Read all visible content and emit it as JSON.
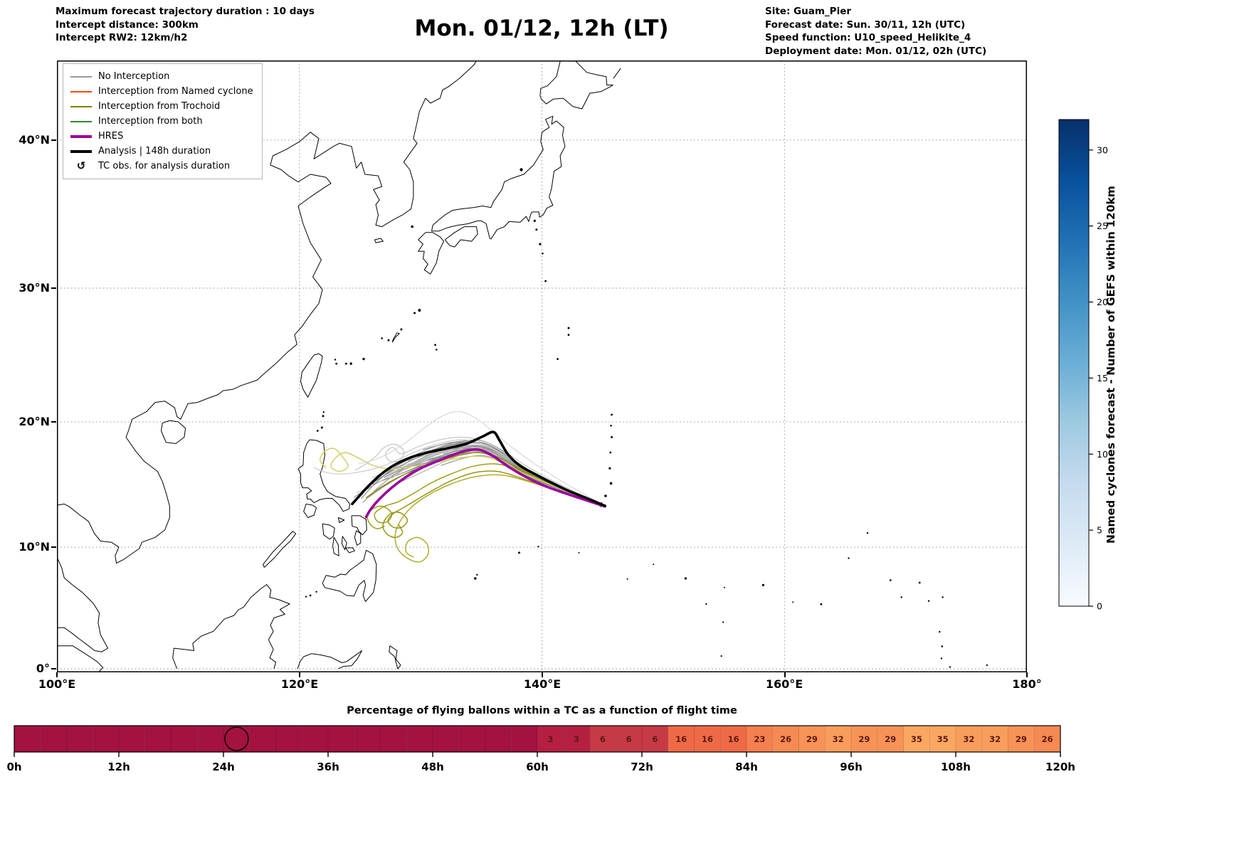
{
  "header": {
    "info_left": {
      "line1": "Maximum forecast trajectory duration : 10 days",
      "line2": "Intercept distance: 300km",
      "line3": "Intercept RW2: 12km/h2"
    },
    "title": "Mon. 01/12, 12h (LT)",
    "info_right": {
      "line1": "Site: Guam_Pier",
      "line2": "Forecast date: Sun. 30/11, 12h (UTC)",
      "line3": "Speed function: U10_speed_Helikite_4",
      "line4": "Deployment date: Mon. 01/12, 02h (UTC)"
    }
  },
  "map": {
    "x_tick_labels": [
      "100°E",
      "120°E",
      "140°E",
      "160°E",
      "180°"
    ],
    "x_tick_lons": [
      100,
      120,
      140,
      160,
      180
    ],
    "y_tick_labels": [
      "0°",
      "10°N",
      "20°N",
      "30°N",
      "40°N"
    ],
    "y_tick_lats": [
      0,
      10,
      20,
      30,
      40
    ],
    "legend": {
      "items": [
        {
          "label": "No Interception",
          "color": "#999999",
          "lw": 2,
          "type": "line"
        },
        {
          "label": "Interception from Named cyclone",
          "color": "#ff4500",
          "lw": 2,
          "type": "line"
        },
        {
          "label": "Interception from Trochoid",
          "color": "#808000",
          "lw": 2,
          "type": "line"
        },
        {
          "label": "Interception from both",
          "color": "#2e8b2e",
          "lw": 2,
          "type": "line"
        },
        {
          "label": "HRES",
          "color": "#9b009b",
          "lw": 4,
          "type": "line"
        },
        {
          "label": "Analysis | 148h duration",
          "color": "#000000",
          "lw": 4,
          "type": "line"
        },
        {
          "label": "TC obs. for analysis duration",
          "symbol": "↺",
          "type": "symbol"
        }
      ]
    }
  },
  "chart_data": {
    "type": "map-trajectories",
    "lon_range": [
      100,
      180
    ],
    "lat_range": [
      -0.3,
      44.9
    ],
    "grid": "dashed",
    "trajectories": {
      "analysis": {
        "name": "Analysis | 148h duration",
        "color": "#000000",
        "width": 3.6,
        "points": [
          [
            145.2,
            13.35
          ],
          [
            143.6,
            14.0
          ],
          [
            142.2,
            14.55
          ],
          [
            140.9,
            15.15
          ],
          [
            139.5,
            15.85
          ],
          [
            138.2,
            16.55
          ],
          [
            137.2,
            17.45
          ],
          [
            136.5,
            18.55
          ],
          [
            136.0,
            19.2
          ],
          [
            135.1,
            18.85
          ],
          [
            133.8,
            18.3
          ],
          [
            132.3,
            17.95
          ],
          [
            130.8,
            17.65
          ],
          [
            129.3,
            17.25
          ],
          [
            127.9,
            16.65
          ],
          [
            126.7,
            15.85
          ],
          [
            125.7,
            14.95
          ],
          [
            124.9,
            14.1
          ],
          [
            124.35,
            13.5
          ]
        ]
      },
      "hres": {
        "name": "HRES",
        "color": "#9b009b",
        "width": 3.6,
        "points": [
          [
            145.2,
            13.3
          ],
          [
            143.5,
            13.85
          ],
          [
            141.8,
            14.4
          ],
          [
            140.1,
            15.0
          ],
          [
            138.6,
            15.7
          ],
          [
            137.2,
            16.5
          ],
          [
            136.0,
            17.3
          ],
          [
            134.9,
            17.8
          ],
          [
            133.8,
            17.75
          ],
          [
            132.5,
            17.35
          ],
          [
            131.2,
            16.85
          ],
          [
            129.9,
            16.3
          ],
          [
            128.7,
            15.6
          ],
          [
            127.6,
            14.8
          ],
          [
            126.6,
            13.9
          ],
          [
            125.9,
            13.1
          ],
          [
            125.5,
            12.45
          ]
        ]
      },
      "ensemble_base": [
        [
          145.2,
          13.35
        ],
        [
          143.3,
          14.1
        ],
        [
          141.4,
          14.85
        ],
        [
          139.6,
          15.6
        ],
        [
          137.9,
          16.5
        ],
        [
          136.4,
          17.45
        ],
        [
          135.0,
          17.95
        ],
        [
          133.5,
          17.9
        ],
        [
          131.9,
          17.55
        ],
        [
          130.3,
          17.05
        ],
        [
          128.7,
          16.45
        ],
        [
          127.1,
          15.75
        ],
        [
          125.7,
          15.0
        ],
        [
          124.5,
          14.3
        ]
      ],
      "ensemble": {
        "count": 24,
        "seed": 97,
        "spread_deg": 1.9,
        "colors": [
          "#7d7d7d",
          "#8a8a8a",
          "#979797",
          "#a5a5a5",
          "#b3b3b3",
          "#c1c1c1",
          "#8f8f8f",
          "#9b9b9b"
        ]
      },
      "members": [
        {
          "name": "trochoid-1",
          "color": "#8f8f00",
          "width": 1.4,
          "points": [
            [
              145.2,
              13.3
            ],
            [
              142.6,
              14.1
            ],
            [
              140.2,
              14.9
            ],
            [
              138.2,
              15.6
            ],
            [
              136.3,
              16.1
            ],
            [
              134.4,
              16.0
            ],
            [
              132.6,
              15.4
            ],
            [
              131.0,
              14.6
            ],
            [
              129.6,
              13.8
            ],
            [
              128.4,
              13.1
            ],
            [
              127.7,
              12.7
            ],
            [
              127.3,
              12.1
            ],
            [
              127.8,
              11.6
            ],
            [
              128.5,
              11.65
            ],
            [
              128.9,
              12.2
            ],
            [
              128.4,
              12.75
            ],
            [
              127.7,
              12.8
            ],
            [
              127.1,
              12.3
            ],
            [
              126.9,
              11.6
            ],
            [
              127.3,
              11.0
            ],
            [
              128.0,
              10.8
            ],
            [
              128.5,
              11.2
            ],
            [
              128.2,
              11.8
            ]
          ]
        },
        {
          "name": "trochoid-2",
          "color": "#a8a820",
          "width": 1.4,
          "points": [
            [
              145.2,
              13.3
            ],
            [
              142.0,
              14.3
            ],
            [
              139.2,
              15.2
            ],
            [
              136.8,
              15.8
            ],
            [
              134.6,
              15.7
            ],
            [
              132.5,
              15.1
            ],
            [
              130.6,
              14.2
            ],
            [
              129.2,
              13.2
            ],
            [
              128.3,
              12.1
            ],
            [
              127.9,
              11.0
            ],
            [
              128.1,
              9.9
            ],
            [
              128.9,
              9.1
            ],
            [
              129.9,
              8.8
            ],
            [
              130.6,
              9.4
            ],
            [
              130.5,
              10.3
            ],
            [
              129.7,
              10.8
            ],
            [
              128.9,
              10.4
            ],
            [
              128.8,
              9.6
            ],
            [
              129.4,
              9.2
            ]
          ]
        },
        {
          "name": "trochoid-3",
          "color": "#9a9a10",
          "width": 1.4,
          "points": [
            [
              145.2,
              13.3
            ],
            [
              142.4,
              14.5
            ],
            [
              139.9,
              15.5
            ],
            [
              137.9,
              16.3
            ],
            [
              136.1,
              16.7
            ],
            [
              134.3,
              16.5
            ],
            [
              132.5,
              15.9
            ],
            [
              130.9,
              15.2
            ],
            [
              129.5,
              14.4
            ],
            [
              128.2,
              13.7
            ],
            [
              127.0,
              13.3
            ],
            [
              126.2,
              12.7
            ],
            [
              126.5,
              12.05
            ],
            [
              127.3,
              12.1
            ],
            [
              127.6,
              12.75
            ],
            [
              126.9,
              13.3
            ],
            [
              126.1,
              13.15
            ],
            [
              125.6,
              12.6
            ],
            [
              125.8,
              11.9
            ],
            [
              126.4,
              11.5
            ],
            [
              127.0,
              11.7
            ]
          ]
        },
        {
          "name": "trochoid-4",
          "color": "#cfcf60",
          "width": 1.4,
          "points": [
            [
              145.2,
              13.3
            ],
            [
              141.6,
              14.7
            ],
            [
              138.6,
              15.9
            ],
            [
              136.5,
              16.9
            ],
            [
              134.9,
              17.3
            ],
            [
              133.1,
              17.15
            ],
            [
              131.2,
              16.8
            ],
            [
              129.3,
              16.5
            ],
            [
              127.5,
              16.3
            ],
            [
              126.0,
              16.6
            ],
            [
              124.8,
              17.2
            ],
            [
              123.8,
              17.6
            ],
            [
              123.0,
              17.2
            ],
            [
              122.6,
              16.5
            ],
            [
              123.3,
              16.1
            ],
            [
              124.0,
              16.5
            ],
            [
              123.6,
              17.2
            ],
            [
              122.9,
              17.9
            ],
            [
              122.1,
              17.7
            ],
            [
              121.7,
              17.0
            ],
            [
              122.2,
              16.4
            ]
          ]
        },
        {
          "name": "trochoid-5",
          "color": "#8f8f00",
          "width": 1.4,
          "points": [
            [
              145.2,
              13.3
            ],
            [
              143.0,
              14.2
            ],
            [
              141.0,
              15.0
            ],
            [
              139.2,
              15.8
            ],
            [
              137.6,
              16.6
            ],
            [
              136.2,
              17.3
            ],
            [
              134.8,
              17.6
            ],
            [
              133.3,
              17.4
            ],
            [
              131.8,
              17.0
            ],
            [
              130.4,
              16.5
            ],
            [
              129.0,
              16.0
            ],
            [
              127.7,
              15.4
            ],
            [
              126.5,
              14.7
            ],
            [
              125.5,
              14.0
            ]
          ]
        },
        {
          "name": "gray-far-west",
          "color": "#cccccc",
          "width": 1.2,
          "points": [
            [
              145.2,
              13.35
            ],
            [
              143.0,
              14.3
            ],
            [
              140.8,
              15.3
            ],
            [
              138.8,
              16.3
            ],
            [
              137.0,
              17.3
            ],
            [
              135.3,
              18.2
            ],
            [
              133.6,
              18.6
            ],
            [
              131.9,
              18.4
            ],
            [
              130.2,
              17.9
            ],
            [
              128.5,
              17.2
            ],
            [
              126.8,
              16.5
            ],
            [
              125.2,
              16.1
            ],
            [
              123.7,
              15.9
            ],
            [
              122.3,
              16.0
            ],
            [
              121.2,
              16.4
            ]
          ]
        },
        {
          "name": "gray-loop",
          "color": "#c4c4c4",
          "width": 1.2,
          "points": [
            [
              145.2,
              13.35
            ],
            [
              142.9,
              14.4
            ],
            [
              140.6,
              15.5
            ],
            [
              138.6,
              16.6
            ],
            [
              136.9,
              17.7
            ],
            [
              135.2,
              18.5
            ],
            [
              133.4,
              18.8
            ],
            [
              131.6,
              18.6
            ],
            [
              129.9,
              18.1
            ],
            [
              128.4,
              17.5
            ],
            [
              127.7,
              18.0
            ],
            [
              127.1,
              17.5
            ],
            [
              127.5,
              16.9
            ],
            [
              128.3,
              17.0
            ],
            [
              128.6,
              17.7
            ],
            [
              127.9,
              18.25
            ],
            [
              127.0,
              18.0
            ],
            [
              126.3,
              17.3
            ],
            [
              125.5,
              16.7
            ],
            [
              124.6,
              16.2
            ]
          ]
        },
        {
          "name": "gray-top",
          "color": "#d8d8d8",
          "width": 1.2,
          "points": [
            [
              145.2,
              13.35
            ],
            [
              143.1,
              14.5
            ],
            [
              141.0,
              15.7
            ],
            [
              139.1,
              16.9
            ],
            [
              137.4,
              18.1
            ],
            [
              135.9,
              19.3
            ],
            [
              134.5,
              20.3
            ],
            [
              133.2,
              20.8
            ],
            [
              131.9,
              20.5
            ],
            [
              130.7,
              19.8
            ],
            [
              129.6,
              19.0
            ],
            [
              128.5,
              18.2
            ],
            [
              127.3,
              17.5
            ],
            [
              126.1,
              17.0
            ],
            [
              124.9,
              16.7
            ]
          ]
        }
      ]
    },
    "colorbar": {
      "label": "Named cyclones forecast - Number of GEFS within 120km",
      "ticks": [
        0,
        5,
        10,
        15,
        20,
        25,
        30
      ],
      "vmax": 32,
      "colors": [
        "#f7fbff",
        "#deebf7",
        "#c6dbef",
        "#9ecae1",
        "#6baed6",
        "#4292c6",
        "#2171b5",
        "#08519c",
        "#08306b"
      ]
    },
    "balloon_bar": {
      "title": "Percentage of flying ballons within a TC as a function of flight time",
      "cell_hours": 3,
      "values": [
        0,
        0,
        0,
        0,
        0,
        0,
        0,
        0,
        0,
        0,
        0,
        0,
        0,
        0,
        0,
        0,
        0,
        0,
        0,
        0,
        3,
        3,
        6,
        6,
        6,
        16,
        16,
        16,
        23,
        26,
        29,
        32,
        29,
        29,
        35,
        35,
        32,
        32,
        29,
        26
      ],
      "axis_ticks": [
        "0h",
        "12h",
        "24h",
        "36h",
        "48h",
        "60h",
        "72h",
        "84h",
        "96h",
        "108h",
        "120h"
      ],
      "marker_hour": 25.5,
      "label_color": "#5d1a10",
      "color_stops": [
        [
          0,
          "#a31240"
        ],
        [
          3,
          "#b51f42"
        ],
        [
          6,
          "#c63a45"
        ],
        [
          10,
          "#da4f44"
        ],
        [
          16,
          "#ee6a47"
        ],
        [
          23,
          "#f3804e"
        ],
        [
          29,
          "#f79356"
        ],
        [
          35,
          "#faa762"
        ]
      ]
    }
  }
}
